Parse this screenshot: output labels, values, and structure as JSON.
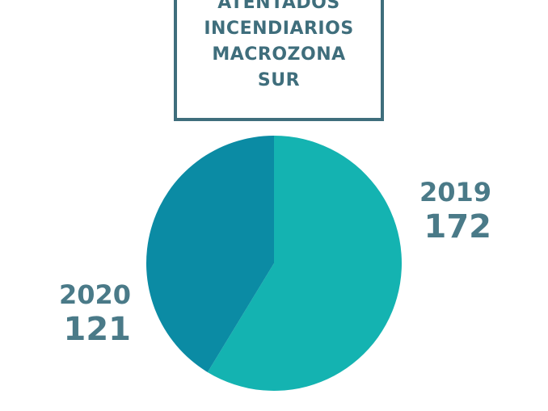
{
  "chart_data": {
    "type": "pie",
    "title": "ATENTADOS INCENDIARIOS MACROZONA SUR",
    "categories": [
      "2019",
      "2020"
    ],
    "values": [
      172,
      121
    ],
    "colors": [
      "#14b3b1",
      "#0b8ba4"
    ]
  }
}
